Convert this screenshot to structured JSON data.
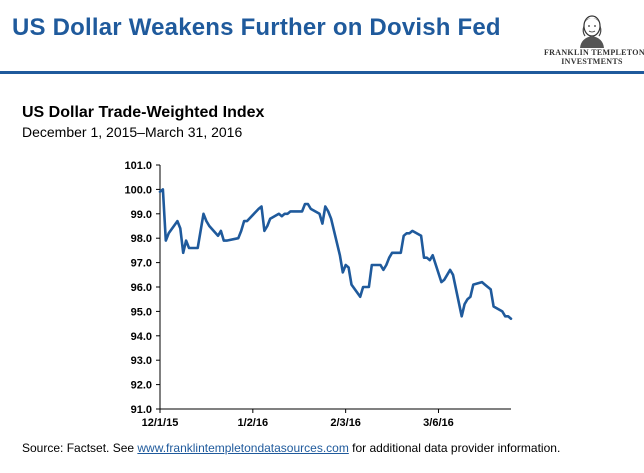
{
  "header": {
    "title": "US Dollar Weakens Further on Dovish Fed",
    "logo_line1": "FRANKLIN TEMPLETON",
    "logo_line2": "INVESTMENTS"
  },
  "colors": {
    "brand_blue": "#1f5a9c",
    "line": "#1f5a9c"
  },
  "chart_data": {
    "type": "line",
    "title": "US Dollar Trade-Weighted Index",
    "subtitle": "December 1, 2015–March 31, 2016",
    "xlabel": "",
    "ylabel": "",
    "ylim": [
      91.0,
      101.0
    ],
    "yticks": [
      91.0,
      92.0,
      93.0,
      94.0,
      95.0,
      96.0,
      97.0,
      98.0,
      99.0,
      100.0,
      101.0
    ],
    "ytick_labels": [
      "91.0",
      "92.0",
      "93.0",
      "94.0",
      "95.0",
      "96.0",
      "97.0",
      "98.0",
      "99.0",
      "100.0",
      "101.0"
    ],
    "xlim": [
      "2015-12-01",
      "2016-03-31"
    ],
    "xticks": [
      "2015-12-01",
      "2016-01-02",
      "2016-02-03",
      "2016-03-06"
    ],
    "xtick_labels": [
      "12/1/15",
      "1/2/16",
      "2/3/16",
      "3/6/16"
    ],
    "grid": false,
    "series": [
      {
        "x": [
          "2015-12-01",
          "2015-12-02",
          "2015-12-03",
          "2015-12-04",
          "2015-12-07",
          "2015-12-08",
          "2015-12-09",
          "2015-12-10",
          "2015-12-11",
          "2015-12-14",
          "2015-12-15",
          "2015-12-16",
          "2015-12-17",
          "2015-12-18",
          "2015-12-21",
          "2015-12-22",
          "2015-12-23",
          "2015-12-24",
          "2015-12-28",
          "2015-12-29",
          "2015-12-30",
          "2015-12-31",
          "2016-01-04",
          "2016-01-05",
          "2016-01-06",
          "2016-01-07",
          "2016-01-08",
          "2016-01-11",
          "2016-01-12",
          "2016-01-13",
          "2016-01-14",
          "2016-01-15",
          "2016-01-18",
          "2016-01-19",
          "2016-01-20",
          "2016-01-21",
          "2016-01-22",
          "2016-01-25",
          "2016-01-26",
          "2016-01-27",
          "2016-01-28",
          "2016-01-29",
          "2016-02-01",
          "2016-02-02",
          "2016-02-03",
          "2016-02-04",
          "2016-02-05",
          "2016-02-08",
          "2016-02-09",
          "2016-02-10",
          "2016-02-11",
          "2016-02-12",
          "2016-02-15",
          "2016-02-16",
          "2016-02-17",
          "2016-02-18",
          "2016-02-19",
          "2016-02-22",
          "2016-02-23",
          "2016-02-24",
          "2016-02-25",
          "2016-02-26",
          "2016-02-29",
          "2016-03-01",
          "2016-03-02",
          "2016-03-03",
          "2016-03-04",
          "2016-03-07",
          "2016-03-08",
          "2016-03-09",
          "2016-03-10",
          "2016-03-11",
          "2016-03-14",
          "2016-03-15",
          "2016-03-16",
          "2016-03-17",
          "2016-03-18",
          "2016-03-21",
          "2016-03-22",
          "2016-03-23",
          "2016-03-24",
          "2016-03-25",
          "2016-03-28",
          "2016-03-29",
          "2016-03-30",
          "2016-03-31"
        ],
        "values": [
          99.9,
          100.0,
          97.9,
          98.2,
          98.7,
          98.4,
          97.4,
          97.9,
          97.6,
          97.6,
          98.3,
          99.0,
          98.7,
          98.5,
          98.1,
          98.3,
          97.9,
          97.9,
          98.0,
          98.3,
          98.7,
          98.7,
          99.2,
          99.3,
          98.3,
          98.5,
          98.8,
          99.0,
          98.9,
          99.0,
          99.0,
          99.1,
          99.1,
          99.1,
          99.4,
          99.4,
          99.2,
          99.0,
          98.6,
          99.3,
          99.1,
          98.8,
          97.3,
          96.6,
          96.9,
          96.8,
          96.1,
          95.6,
          96.0,
          96.0,
          96.0,
          96.9,
          96.9,
          96.7,
          96.9,
          97.2,
          97.4,
          97.4,
          98.1,
          98.2,
          98.2,
          98.3,
          98.1,
          97.2,
          97.2,
          97.1,
          97.3,
          96.2,
          96.3,
          96.5,
          96.7,
          96.5,
          94.8,
          95.3,
          95.5,
          95.6,
          96.1,
          96.2,
          96.1,
          96.0,
          95.9,
          95.2,
          95.0,
          94.8,
          94.8,
          94.7
        ]
      }
    ]
  },
  "footer": {
    "prefix": "Source: Factset. See ",
    "link": "www.franklintempletondatasources.com",
    "suffix": " for additional data provider information."
  }
}
